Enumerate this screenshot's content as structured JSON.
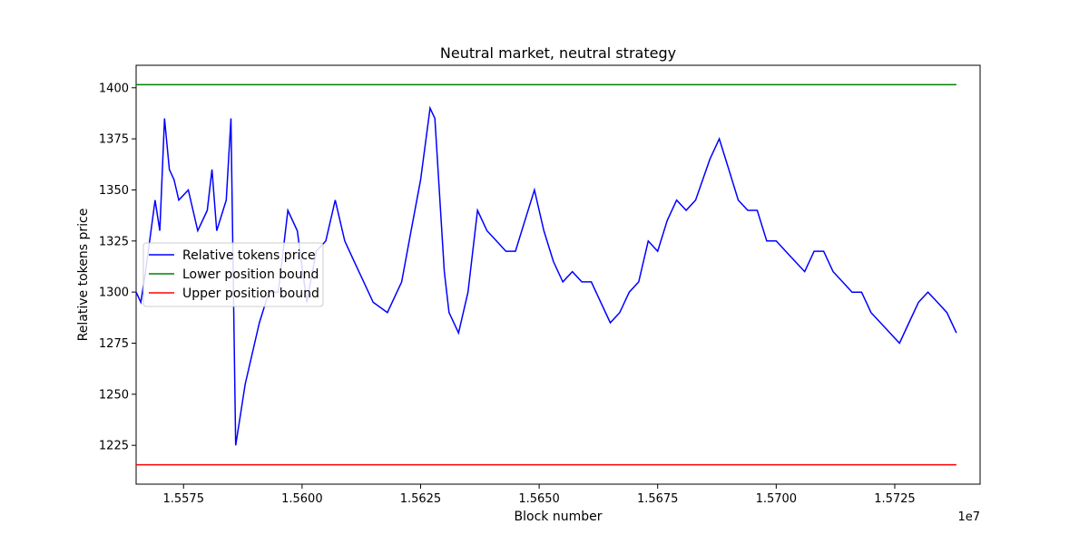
{
  "chart_data": {
    "type": "line",
    "title": "Neutral market, neutral strategy",
    "xlabel": "Block number",
    "ylabel": "Relative tokens price",
    "x_offset_label": "1e7",
    "xlim": [
      15.5565,
      15.5743
    ],
    "ylim": [
      1206,
      1411
    ],
    "xticks": [
      15.5575,
      15.56,
      15.5625,
      15.565,
      15.5675,
      15.57,
      15.5725
    ],
    "xtick_labels": [
      "1.5575",
      "1.5600",
      "1.5625",
      "1.5650",
      "1.5675",
      "1.5700",
      "1.5725"
    ],
    "yticks": [
      1225,
      1250,
      1275,
      1300,
      1325,
      1350,
      1375,
      1400
    ],
    "ytick_labels": [
      "1225",
      "1250",
      "1275",
      "1300",
      "1325",
      "1350",
      "1375",
      "1400"
    ],
    "grid": false,
    "legend_position": "center-left",
    "series": [
      {
        "name": "Relative tokens price",
        "color": "#0000ff",
        "x": [
          15.5565,
          15.5566,
          15.5567,
          15.5569,
          15.557,
          15.5571,
          15.5572,
          15.5573,
          15.5574,
          15.5576,
          15.5578,
          15.558,
          15.5581,
          15.5582,
          15.5584,
          15.5585,
          15.5586,
          15.5588,
          15.559,
          15.5591,
          15.5593,
          15.5595,
          15.5597,
          15.5599,
          15.5601,
          15.5603,
          15.5605,
          15.5607,
          15.5609,
          15.5611,
          15.5613,
          15.5615,
          15.5618,
          15.5621,
          15.5623,
          15.5625,
          15.5627,
          15.5628,
          15.563,
          15.5631,
          15.5633,
          15.5635,
          15.5637,
          15.5639,
          15.5641,
          15.5643,
          15.5645,
          15.5647,
          15.5649,
          15.5651,
          15.5653,
          15.5655,
          15.5657,
          15.5659,
          15.5661,
          15.5663,
          15.5665,
          15.5667,
          15.5669,
          15.5671,
          15.5673,
          15.5675,
          15.5677,
          15.5679,
          15.5681,
          15.5683,
          15.5686,
          15.5688,
          15.569,
          15.5692,
          15.5694,
          15.5696,
          15.5698,
          15.57,
          15.5702,
          15.5704,
          15.5706,
          15.5708,
          15.571,
          15.5712,
          15.5714,
          15.5716,
          15.5718,
          15.572,
          15.5722,
          15.5724,
          15.5726,
          15.5728,
          15.573,
          15.5732,
          15.5734,
          15.5736,
          15.5737,
          15.5738
        ],
        "y": [
          1300,
          1295,
          1310,
          1345,
          1330,
          1385,
          1360,
          1355,
          1345,
          1350,
          1330,
          1340,
          1360,
          1330,
          1345,
          1385,
          1225,
          1255,
          1275,
          1285,
          1300,
          1300,
          1340,
          1330,
          1295,
          1320,
          1325,
          1345,
          1325,
          1315,
          1305,
          1295,
          1290,
          1305,
          1330,
          1355,
          1390,
          1385,
          1310,
          1290,
          1280,
          1300,
          1340,
          1330,
          1325,
          1320,
          1320,
          1335,
          1350,
          1330,
          1315,
          1305,
          1310,
          1305,
          1305,
          1295,
          1285,
          1290,
          1300,
          1305,
          1325,
          1320,
          1335,
          1345,
          1340,
          1345,
          1365,
          1375,
          1360,
          1345,
          1340,
          1340,
          1325,
          1325,
          1320,
          1315,
          1310,
          1320,
          1320,
          1310,
          1305,
          1300,
          1300,
          1290,
          1285,
          1280,
          1275,
          1285,
          1295,
          1300,
          1295,
          1290,
          1285,
          1280
        ],
        "values_note": ""
      },
      {
        "name": "Lower position bound",
        "color": "#008000",
        "x": [
          15.5565,
          15.5738
        ],
        "y": [
          1401.5,
          1401.5
        ]
      },
      {
        "name": "Upper position bound",
        "color": "#ff0000",
        "x": [
          15.5565,
          15.5738
        ],
        "y": [
          1215.5,
          1215.5
        ]
      }
    ]
  }
}
